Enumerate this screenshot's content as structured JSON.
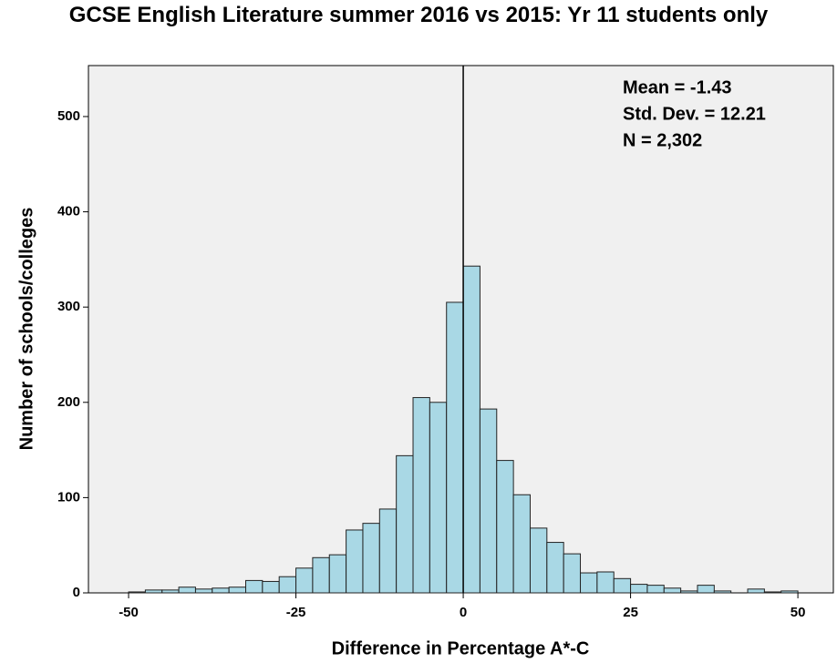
{
  "chart_data": {
    "type": "histogram",
    "title": "GCSE English Literature summer 2016 vs 2015: Yr 11 students only",
    "x_label": "Difference in Percentage A*-C",
    "y_label": "Number of schools/colleges",
    "annotations": [
      "Mean = -1.43",
      "Std. Dev. = 12.21",
      "N = 2,302"
    ],
    "bins": [
      -50,
      -47.5,
      -45,
      -42.5,
      -40,
      -37.5,
      -35,
      -32.5,
      -30,
      -27.5,
      -25,
      -22.5,
      -20,
      -17.5,
      -15,
      -12.5,
      -10,
      -7.5,
      -5,
      -2.5,
      0,
      2.5,
      5,
      7.5,
      10,
      12.5,
      15,
      17.5,
      20,
      22.5,
      25,
      27.5,
      30,
      32.5,
      35,
      37.5,
      40,
      42.5,
      45,
      47.5,
      50
    ],
    "counts": [
      1,
      3,
      3,
      6,
      4,
      5,
      6,
      13,
      12,
      17,
      26,
      37,
      40,
      66,
      73,
      88,
      144,
      205,
      200,
      305,
      343,
      193,
      139,
      103,
      68,
      53,
      41,
      21,
      22,
      15,
      9,
      8,
      5,
      2,
      8,
      2,
      0,
      4,
      1,
      2
    ],
    "color": "#a9d8e5",
    "reference_line_x": 0,
    "xlim": [
      -56,
      55.3
    ],
    "xticks": [
      -50,
      -25,
      0,
      25,
      50
    ],
    "ylim": [
      0,
      553.5
    ],
    "yticks": [
      0,
      100,
      200,
      300,
      400,
      500
    ],
    "grid": false
  }
}
